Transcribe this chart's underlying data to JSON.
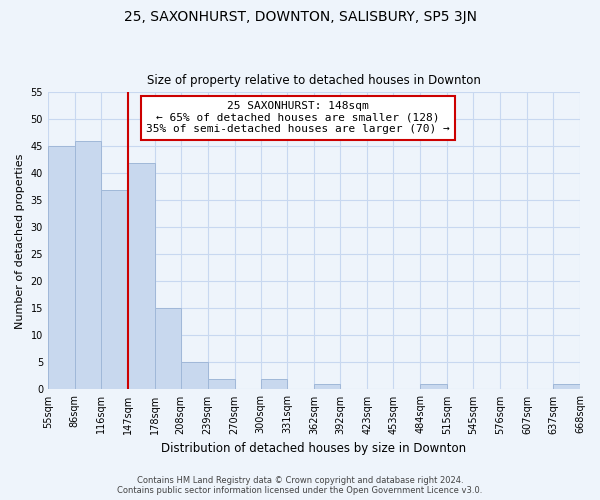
{
  "title": "25, SAXONHURST, DOWNTON, SALISBURY, SP5 3JN",
  "subtitle": "Size of property relative to detached houses in Downton",
  "xlabel": "Distribution of detached houses by size in Downton",
  "ylabel": "Number of detached properties",
  "bin_edges": [
    55,
    86,
    116,
    147,
    178,
    208,
    239,
    270,
    300,
    331,
    362,
    392,
    423,
    453,
    484,
    515,
    545,
    576,
    607,
    637,
    668
  ],
  "bin_labels": [
    "55sqm",
    "86sqm",
    "116sqm",
    "147sqm",
    "178sqm",
    "208sqm",
    "239sqm",
    "270sqm",
    "300sqm",
    "331sqm",
    "362sqm",
    "392sqm",
    "423sqm",
    "453sqm",
    "484sqm",
    "515sqm",
    "545sqm",
    "576sqm",
    "607sqm",
    "637sqm",
    "668sqm"
  ],
  "bar_heights": [
    45,
    46,
    37,
    42,
    15,
    5,
    2,
    0,
    2,
    0,
    1,
    0,
    0,
    0,
    1,
    0,
    0,
    0,
    0,
    1
  ],
  "bar_color": "#c8d8ee",
  "bar_edge_color": "#a0b8d8",
  "property_line_x": 147,
  "property_line_color": "#cc0000",
  "annotation_line1": "25 SAXONHURST: 148sqm",
  "annotation_line2": "← 65% of detached houses are smaller (128)",
  "annotation_line3": "35% of semi-detached houses are larger (70) →",
  "annotation_box_color": "#ffffff",
  "annotation_box_edge_color": "#cc0000",
  "ylim": [
    0,
    55
  ],
  "yticks": [
    0,
    5,
    10,
    15,
    20,
    25,
    30,
    35,
    40,
    45,
    50,
    55
  ],
  "grid_color": "#c8d8f0",
  "footer_line1": "Contains HM Land Registry data © Crown copyright and database right 2024.",
  "footer_line2": "Contains public sector information licensed under the Open Government Licence v3.0.",
  "bg_color": "#eef4fb"
}
